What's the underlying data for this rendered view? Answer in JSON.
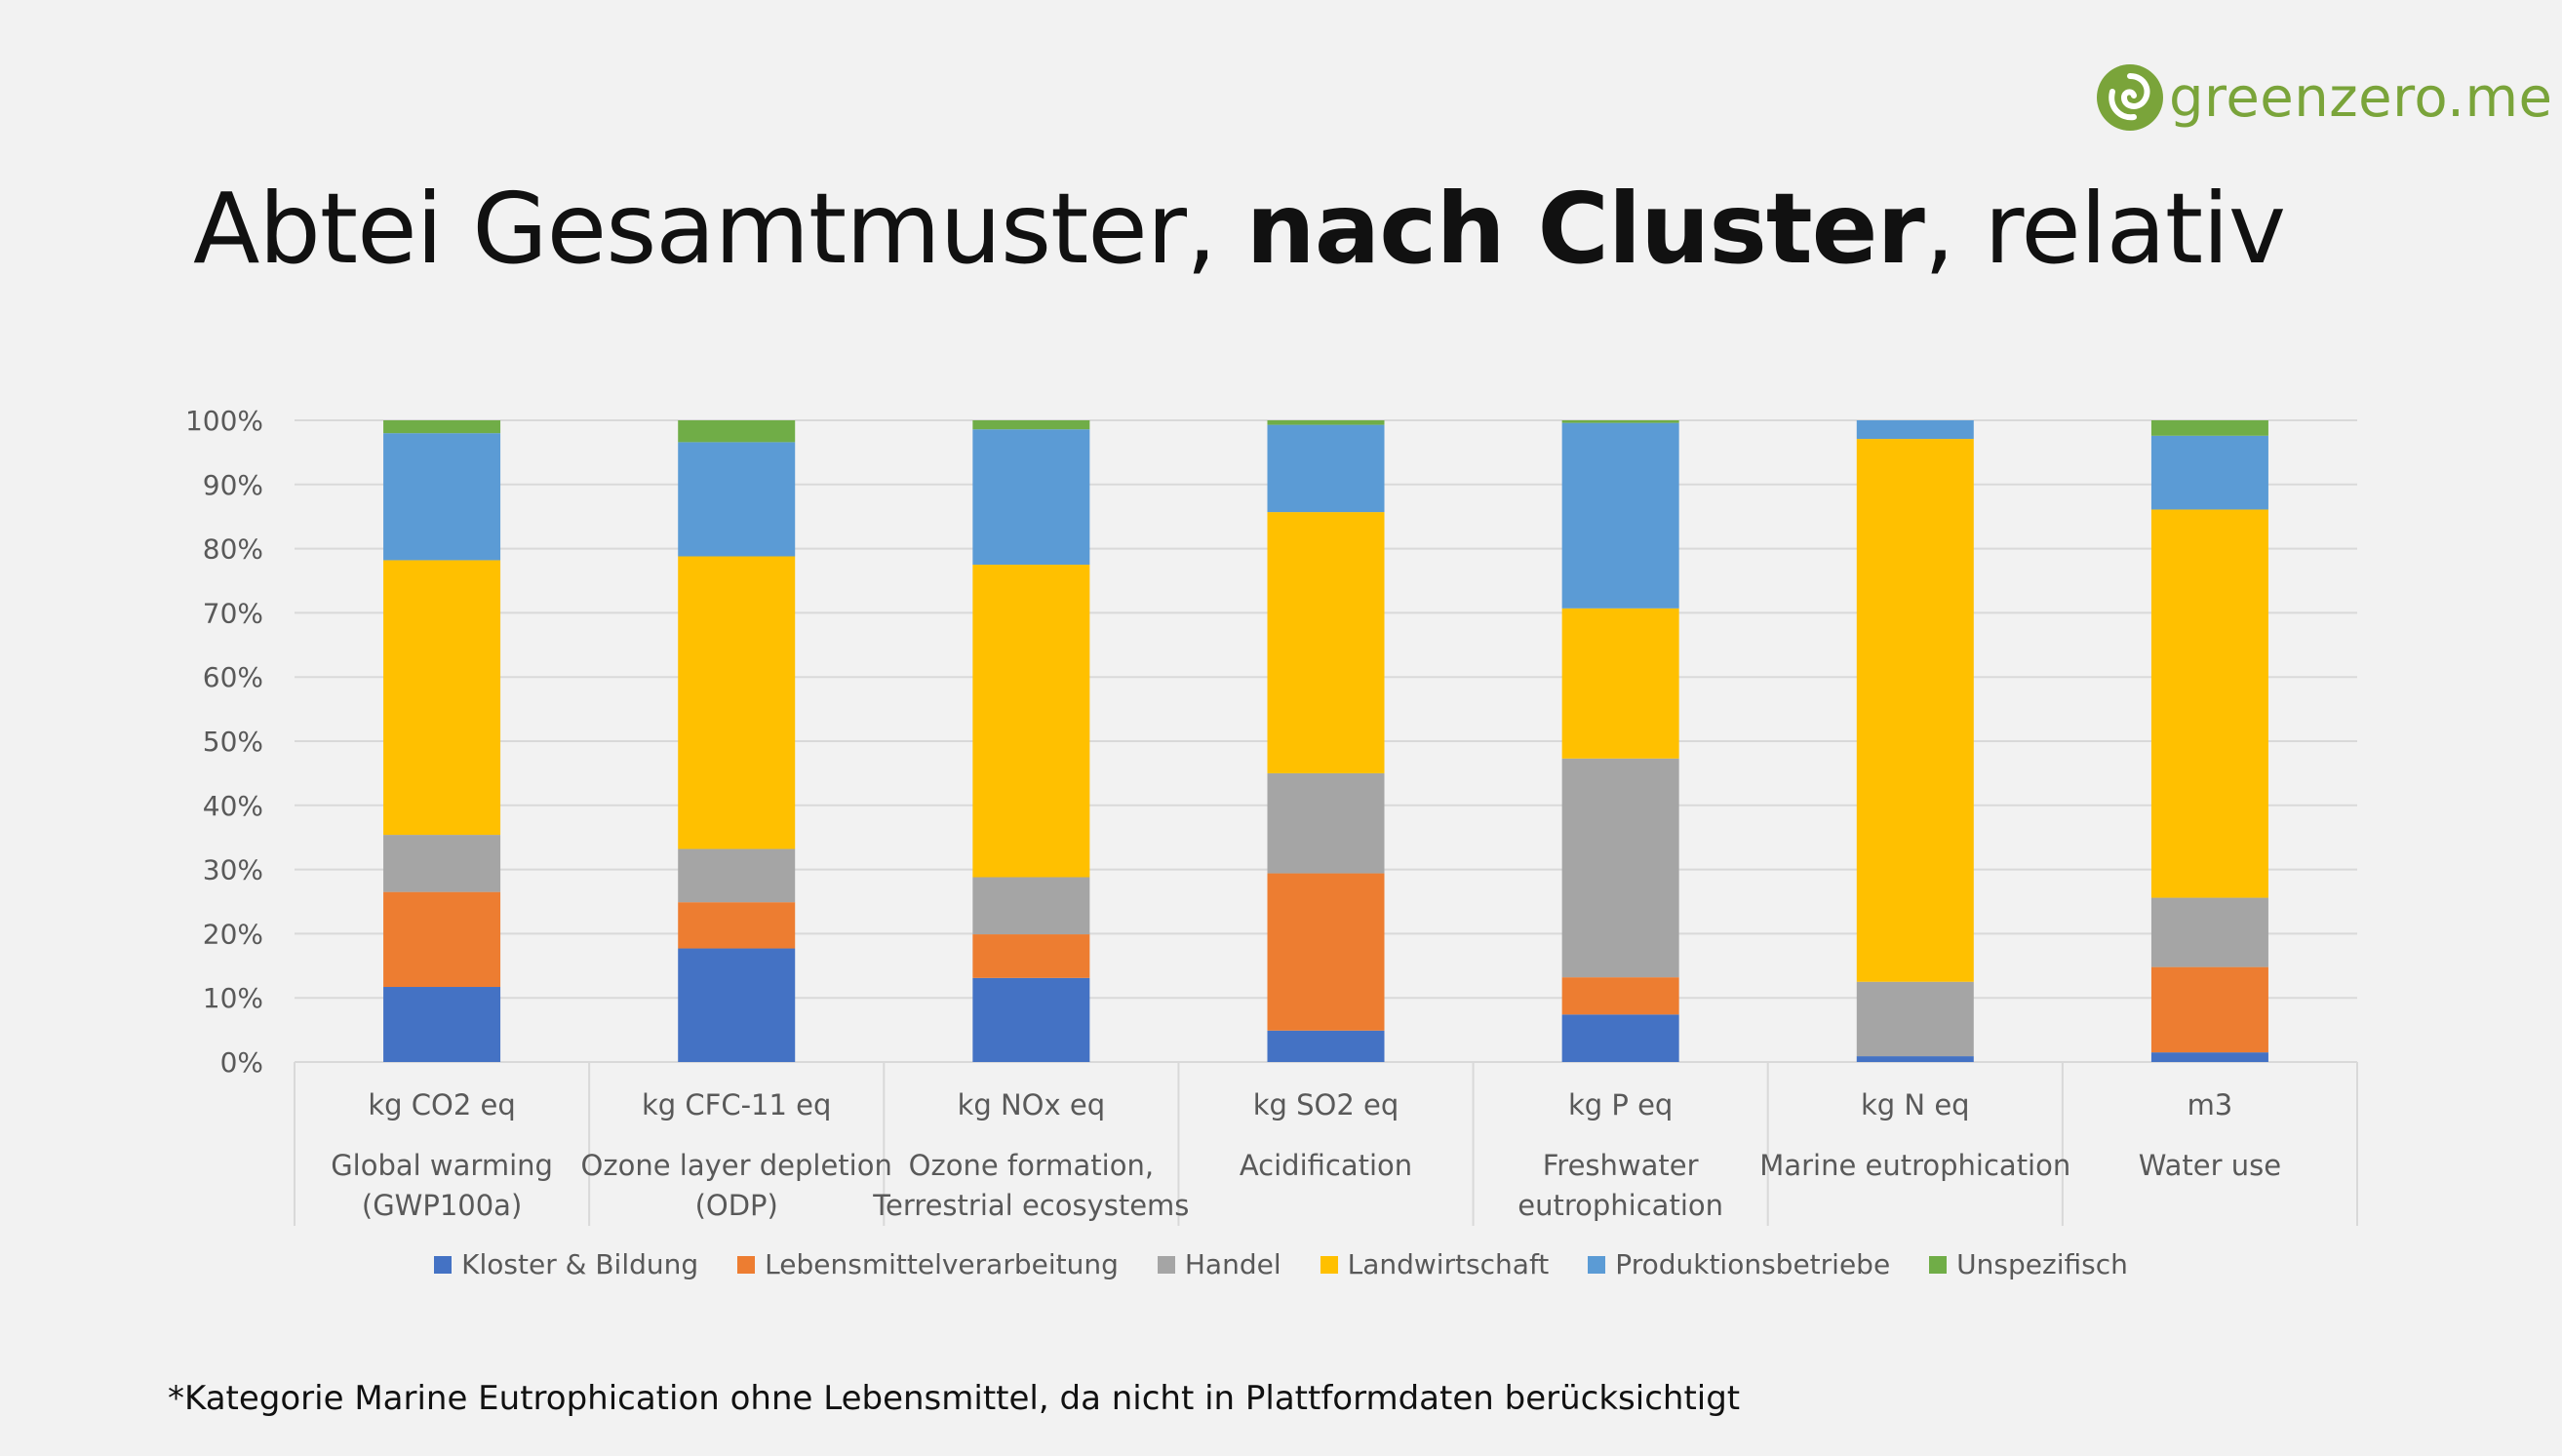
{
  "logo": {
    "text": "greenzero.me"
  },
  "title": {
    "part1": "Abtei Gesamtmuster, ",
    "bold": "nach Cluster",
    "part2": ", relativ"
  },
  "footnote": "*Kategorie Marine Eutrophication ohne Lebensmittel, da nicht in Plattformdaten berücksichtigt",
  "colors": {
    "grid": "#d9d9d9",
    "axis_text": "#595959",
    "logo_green": "#7aa43a"
  },
  "chart_data": {
    "type": "bar",
    "stacked": true,
    "title": "Abtei Gesamtmuster, nach Cluster, relativ",
    "ylim": [
      0,
      100
    ],
    "yticks": [
      "0%",
      "10%",
      "20%",
      "30%",
      "40%",
      "50%",
      "60%",
      "70%",
      "80%",
      "90%",
      "100%"
    ],
    "grid": true,
    "legend_position": "bottom",
    "categories": [
      {
        "unit": "kg CO2 eq",
        "name_lines": [
          "Global warming",
          "(GWP100a)"
        ]
      },
      {
        "unit": "kg CFC-11 eq",
        "name_lines": [
          "Ozone layer depletion",
          "(ODP)"
        ]
      },
      {
        "unit": "kg NOx eq",
        "name_lines": [
          "Ozone formation,",
          "Terrestrial ecosystems"
        ]
      },
      {
        "unit": "kg SO2 eq",
        "name_lines": [
          "Acidification"
        ]
      },
      {
        "unit": "kg P eq",
        "name_lines": [
          "Freshwater",
          "eutrophication"
        ]
      },
      {
        "unit": "kg N eq",
        "name_lines": [
          "Marine eutrophication"
        ]
      },
      {
        "unit": "m3",
        "name_lines": [
          "Water use"
        ]
      }
    ],
    "series": [
      {
        "name": "Kloster & Bildung",
        "color": "#4472c4",
        "values": [
          11.7,
          17.7,
          13.1,
          4.9,
          7.4,
          0.9,
          1.5
        ]
      },
      {
        "name": "Lebensmittelverarbeitung",
        "color": "#ed7d31",
        "values": [
          14.8,
          7.2,
          6.8,
          24.5,
          5.8,
          0.0,
          13.3
        ]
      },
      {
        "name": "Handel",
        "color": "#a5a5a5",
        "values": [
          8.9,
          8.3,
          8.9,
          15.6,
          34.1,
          11.6,
          10.8
        ]
      },
      {
        "name": "Landwirtschaft",
        "color": "#ffc000",
        "values": [
          42.8,
          45.6,
          48.7,
          40.7,
          23.4,
          84.6,
          60.5
        ]
      },
      {
        "name": "Produktionsbetriebe",
        "color": "#5b9bd5",
        "values": [
          19.8,
          17.8,
          21.1,
          13.6,
          28.9,
          2.9,
          11.5
        ]
      },
      {
        "name": "Unspezifisch",
        "color": "#70ad47",
        "values": [
          2.0,
          3.4,
          1.4,
          0.7,
          0.4,
          0.0,
          2.4
        ]
      }
    ]
  }
}
